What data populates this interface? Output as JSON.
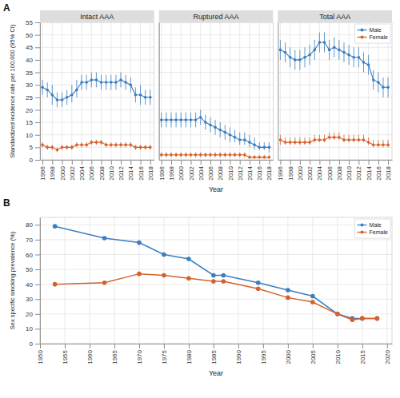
{
  "chart_data": [
    {
      "type": "line",
      "title": "Intact AAA",
      "annotations": [
        "A"
      ],
      "ylabel": "Standardized incidence rate per 100,000 (95% CI)",
      "x": [
        1996,
        1997,
        1998,
        1999,
        2000,
        2001,
        2002,
        2003,
        2004,
        2005,
        2006,
        2007,
        2008,
        2009,
        2010,
        2011,
        2012,
        2013,
        2014,
        2015,
        2016,
        2017,
        2018
      ],
      "xlim": [
        1995.5,
        2018.8
      ],
      "ylim": [
        0,
        55
      ],
      "xticks": [
        1996,
        1998,
        2000,
        2002,
        2004,
        2006,
        2008,
        2010,
        2012,
        2014,
        2016,
        2018
      ],
      "yticks": [
        0,
        5,
        10,
        15,
        20,
        25,
        30,
        35,
        40,
        45,
        50,
        55
      ],
      "grid": true,
      "marker": "circle",
      "series": [
        {
          "name": "Male",
          "color": "#3a7ebf",
          "values": [
            29,
            28,
            26,
            24,
            24,
            25,
            26,
            28,
            31,
            31,
            32,
            32,
            31,
            31,
            31,
            31,
            32,
            31,
            30,
            26,
            26,
            25,
            25
          ],
          "lower": [
            26,
            25,
            22,
            21,
            21,
            22,
            23,
            25,
            28,
            28,
            29,
            29,
            28,
            28,
            28,
            28,
            29,
            28,
            27,
            23,
            22,
            22,
            22
          ],
          "upper": [
            32,
            31,
            30,
            27,
            27,
            28,
            30,
            32,
            34,
            34,
            35,
            35,
            34,
            34,
            34,
            34,
            35,
            34,
            33,
            29,
            30,
            28,
            28
          ]
        },
        {
          "name": "Female",
          "color": "#d4622a",
          "values": [
            6,
            5,
            5,
            4,
            5,
            5,
            5,
            6,
            6,
            6,
            7,
            7,
            7,
            6,
            6,
            6,
            6,
            6,
            6,
            5,
            5,
            5,
            5
          ],
          "lower": [
            5,
            4,
            4,
            3,
            4,
            4,
            4,
            5,
            5,
            5,
            6,
            6,
            6,
            5,
            5,
            5,
            5,
            5,
            5,
            4,
            4,
            4,
            4
          ],
          "upper": [
            7,
            6,
            6,
            5,
            6,
            6,
            6,
            7,
            7,
            7,
            8,
            8,
            8,
            7,
            7,
            7,
            7,
            7,
            7,
            6,
            6,
            6,
            6
          ]
        }
      ]
    },
    {
      "type": "line",
      "title": "Ruptured AAA",
      "xlabel": "Year",
      "tick_labels": "x",
      "x": [
        1996,
        1997,
        1998,
        1999,
        2000,
        2001,
        2002,
        2003,
        2004,
        2005,
        2006,
        2007,
        2008,
        2009,
        2010,
        2011,
        2012,
        2013,
        2014,
        2015,
        2016,
        2017,
        2018
      ],
      "xlim": [
        1995.5,
        2018.8
      ],
      "ylim": [
        0,
        55
      ],
      "xticks": [
        1996,
        1998,
        2000,
        2002,
        2004,
        2006,
        2008,
        2010,
        2012,
        2014,
        2016,
        2018
      ],
      "yticks": [
        0,
        5,
        10,
        15,
        20,
        25,
        30,
        35,
        40,
        45,
        50,
        55
      ],
      "grid": true,
      "marker": "circle",
      "series": [
        {
          "name": "Male",
          "color": "#3a7ebf",
          "values": [
            16,
            16,
            16,
            16,
            16,
            16,
            16,
            16,
            17,
            15,
            14,
            13,
            12,
            11,
            10,
            9,
            8,
            8,
            7,
            6,
            5,
            5,
            5
          ],
          "lower": [
            13,
            13,
            13,
            13,
            13,
            13,
            13,
            13,
            14,
            12,
            11,
            10,
            9,
            8,
            7,
            7,
            6,
            6,
            5,
            4,
            4,
            4,
            3
          ],
          "upper": [
            19,
            19,
            19,
            19,
            19,
            19,
            19,
            19,
            20,
            18,
            17,
            16,
            15,
            14,
            13,
            12,
            11,
            11,
            10,
            9,
            7,
            7,
            7
          ]
        },
        {
          "name": "Female",
          "color": "#d4622a",
          "values": [
            2,
            2,
            2,
            2,
            2,
            2,
            2,
            2,
            2,
            2,
            2,
            2,
            2,
            2,
            2,
            2,
            2,
            2,
            1,
            1,
            1,
            1,
            1
          ],
          "lower": [
            1,
            1,
            1,
            1,
            1,
            1,
            1,
            1,
            1,
            1,
            1,
            1,
            1,
            1,
            1,
            1,
            1,
            1,
            1,
            1,
            1,
            1,
            1
          ],
          "upper": [
            3,
            3,
            3,
            3,
            3,
            3,
            3,
            3,
            3,
            3,
            3,
            3,
            3,
            3,
            3,
            3,
            3,
            3,
            2,
            2,
            2,
            2,
            2
          ]
        }
      ]
    },
    {
      "type": "line",
      "title": "Total AAA",
      "tick_labels": "x",
      "legend": "upper right",
      "x": [
        1996,
        1997,
        1998,
        1999,
        2000,
        2001,
        2002,
        2003,
        2004,
        2005,
        2006,
        2007,
        2008,
        2009,
        2010,
        2011,
        2012,
        2013,
        2014,
        2015,
        2016,
        2017,
        2018
      ],
      "xlim": [
        1995.5,
        2018.8
      ],
      "ylim": [
        0,
        55
      ],
      "xticks": [
        1996,
        1998,
        2000,
        2002,
        2004,
        2006,
        2008,
        2010,
        2012,
        2014,
        2016,
        2018
      ],
      "yticks": [
        0,
        5,
        10,
        15,
        20,
        25,
        30,
        35,
        40,
        45,
        50,
        55
      ],
      "grid": true,
      "marker": "circle",
      "series": [
        {
          "name": "Male",
          "color": "#3a7ebf",
          "values": [
            44,
            43,
            41,
            40,
            40,
            41,
            42,
            44,
            47,
            47,
            44,
            45,
            44,
            43,
            42,
            41,
            41,
            39,
            38,
            32,
            31,
            29,
            29
          ],
          "lower": [
            40,
            39,
            37,
            36,
            36,
            37,
            38,
            40,
            43,
            43,
            40,
            41,
            40,
            39,
            38,
            37,
            37,
            35,
            34,
            28,
            27,
            25,
            25
          ],
          "upper": [
            48,
            47,
            45,
            44,
            44,
            45,
            46,
            48,
            51,
            51,
            48,
            49,
            48,
            47,
            46,
            45,
            45,
            43,
            42,
            36,
            35,
            33,
            33
          ]
        },
        {
          "name": "Female",
          "color": "#d4622a",
          "values": [
            8,
            7,
            7,
            7,
            7,
            7,
            7,
            8,
            8,
            8,
            9,
            9,
            9,
            8,
            8,
            8,
            8,
            8,
            7,
            6,
            6,
            6,
            6
          ],
          "lower": [
            6,
            6,
            6,
            6,
            6,
            6,
            6,
            7,
            7,
            7,
            8,
            8,
            8,
            7,
            7,
            7,
            7,
            7,
            6,
            5,
            5,
            5,
            5
          ],
          "upper": [
            10,
            9,
            9,
            9,
            9,
            9,
            9,
            10,
            10,
            10,
            11,
            11,
            11,
            10,
            10,
            10,
            10,
            10,
            9,
            8,
            8,
            8,
            8
          ]
        }
      ]
    },
    {
      "type": "line",
      "annotations": [
        "B"
      ],
      "ylabel": "Sex specific smoking prevalence (%)",
      "xlabel": "Year",
      "x": [
        1953,
        1963,
        1970,
        1975,
        1980,
        1985,
        1987,
        1994,
        2000,
        2005,
        2010,
        2013,
        2015,
        2018
      ],
      "xlim": [
        1950,
        2021
      ],
      "ylim": [
        0,
        85
      ],
      "xticks": [
        1950,
        1955,
        1960,
        1965,
        1970,
        1975,
        1980,
        1985,
        1990,
        1995,
        2000,
        2005,
        2010,
        2015,
        2020
      ],
      "yticks": [
        0,
        10,
        20,
        30,
        40,
        50,
        60,
        70,
        80
      ],
      "grid": true,
      "marker": "circle",
      "legend": "upper right",
      "series": [
        {
          "name": "Male",
          "color": "#3a7ebf",
          "values": [
            79,
            71,
            68,
            60,
            57,
            46,
            46,
            41,
            36,
            32,
            20,
            17,
            17,
            17
          ]
        },
        {
          "name": "Female",
          "color": "#d4622a",
          "values": [
            40,
            41,
            47,
            46,
            44,
            42,
            42,
            37,
            31,
            28,
            20,
            16,
            17,
            17
          ]
        }
      ]
    }
  ]
}
